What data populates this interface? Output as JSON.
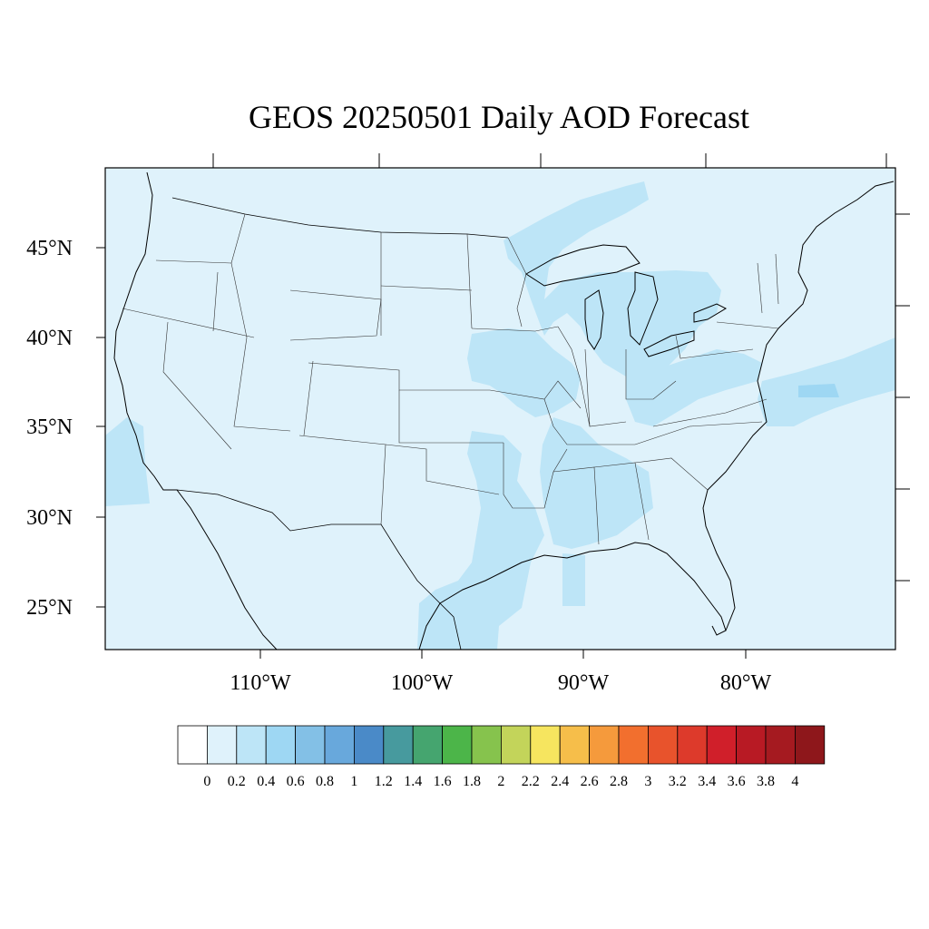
{
  "title": "GEOS 20250501 Daily AOD Forecast",
  "map": {
    "region": "Continental United States",
    "projection": "Lambert conformal",
    "lat_labels": [
      "45°N",
      "40°N",
      "35°N",
      "30°N",
      "25°N"
    ],
    "lon_labels": [
      "110°W",
      "100°W",
      "90°W",
      "80°W"
    ],
    "background_aod_class": "0-0.2",
    "elevated_aod_regions": [
      {
        "area": "Great Lakes / Lake Michigan",
        "aod_class": "0.2-0.4"
      },
      {
        "area": "Ohio Valley and Mid-Atlantic",
        "aod_class": "0.2-0.4"
      },
      {
        "area": "Iowa, Missouri, Illinois",
        "aod_class": "0.2-0.4"
      },
      {
        "area": "Lower Mississippi Valley",
        "aod_class": "0.2-0.4"
      },
      {
        "area": "East Texas and Gulf Coast",
        "aod_class": "0.2-0.4"
      },
      {
        "area": "Pacific off southern California",
        "aod_class": "0.2-0.4"
      },
      {
        "area": "Atlantic off Mid-Atlantic coast",
        "aod_class": "0.2-0.4"
      },
      {
        "area": "Southern Ontario / Quebec",
        "aod_class": "0.2-0.4"
      }
    ]
  },
  "colorbar": {
    "labels": [
      "0",
      "0.2",
      "0.4",
      "0.6",
      "0.8",
      "1",
      "1.2",
      "1.4",
      "1.6",
      "1.8",
      "2",
      "2.2",
      "2.4",
      "2.6",
      "2.8",
      "3",
      "3.2",
      "3.4",
      "3.6",
      "3.8",
      "4"
    ],
    "colors": [
      "#ffffff",
      "#dff2fb",
      "#bde5f7",
      "#9ed7f3",
      "#83c0e6",
      "#68a8dc",
      "#4a8ac8",
      "#479a9e",
      "#45a56f",
      "#4cb549",
      "#86c34d",
      "#c3d45a",
      "#f6e55f",
      "#f6be4a",
      "#f59a3c",
      "#f26f2e",
      "#e8532c",
      "#dd3a2b",
      "#d01f2a",
      "#b81a24",
      "#a51a20",
      "#8e171b"
    ]
  }
}
